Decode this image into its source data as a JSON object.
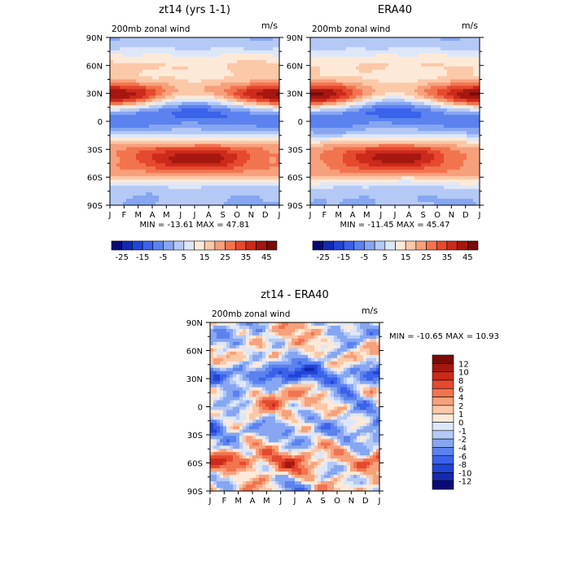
{
  "chart_data": [
    {
      "type": "heatmap",
      "panel": "left",
      "title": "zt14 (yrs 1-1)",
      "subtitle": "200mb zonal wind",
      "units": "m/s",
      "x_tick_labels": [
        "J",
        "F",
        "M",
        "A",
        "M",
        "J",
        "J",
        "A",
        "S",
        "O",
        "N",
        "D",
        "J"
      ],
      "y_tick_labels": [
        "90N",
        "60N",
        "30N",
        "0",
        "30S",
        "60S",
        "90S"
      ],
      "y_tick_values": [
        90,
        60,
        30,
        0,
        -30,
        -60,
        -90
      ],
      "ylim": [
        -90,
        90
      ],
      "stats_text": "MIN = -13.61 MAX =  47.81",
      "min": -13.61,
      "max": 47.81,
      "colorbar": {
        "orientation": "horizontal",
        "levels": [
          -30,
          -25,
          -20,
          -15,
          -10,
          -5,
          0,
          5,
          10,
          15,
          20,
          25,
          30,
          35,
          40,
          45,
          50
        ],
        "tick_labels": [
          "-25",
          "-15",
          "-5",
          "5",
          "15",
          "25",
          "35",
          "45"
        ]
      }
    },
    {
      "type": "heatmap",
      "panel": "right",
      "title": "ERA40",
      "subtitle": "200mb zonal wind",
      "units": "m/s",
      "x_tick_labels": [
        "J",
        "F",
        "M",
        "A",
        "M",
        "J",
        "J",
        "A",
        "S",
        "O",
        "N",
        "D",
        "J"
      ],
      "y_tick_labels": [
        "90N",
        "60N",
        "30N",
        "0",
        "30S",
        "60S",
        "90S"
      ],
      "y_tick_values": [
        90,
        60,
        30,
        0,
        -30,
        -60,
        -90
      ],
      "ylim": [
        -90,
        90
      ],
      "stats_text": "MIN = -11.45 MAX =  45.47",
      "min": -11.45,
      "max": 45.47,
      "colorbar": {
        "orientation": "horizontal",
        "levels": [
          -30,
          -25,
          -20,
          -15,
          -10,
          -5,
          0,
          5,
          10,
          15,
          20,
          25,
          30,
          35,
          40,
          45,
          50
        ],
        "tick_labels": [
          "-25",
          "-15",
          "-5",
          "5",
          "15",
          "25",
          "35",
          "45"
        ]
      }
    },
    {
      "type": "heatmap",
      "panel": "difference",
      "title": "zt14 - ERA40",
      "subtitle": "200mb zonal wind",
      "units": "m/s",
      "x_tick_labels": [
        "J",
        "F",
        "M",
        "A",
        "M",
        "J",
        "J",
        "A",
        "S",
        "O",
        "N",
        "D",
        "J"
      ],
      "y_tick_labels": [
        "90N",
        "60N",
        "30N",
        "0",
        "30S",
        "60S",
        "90S"
      ],
      "y_tick_values": [
        90,
        60,
        30,
        0,
        -30,
        -60,
        -90
      ],
      "ylim": [
        -90,
        90
      ],
      "stats_text": "MIN = -10.65 MAX =  10.93",
      "min": -10.65,
      "max": 10.93,
      "colorbar": {
        "orientation": "vertical",
        "levels": [
          -14,
          -12,
          -10,
          -8,
          -6,
          -4,
          -2,
          -1,
          0,
          1,
          2,
          4,
          6,
          8,
          10,
          12,
          14
        ],
        "tick_labels": [
          "12",
          "10",
          "8",
          "6",
          "4",
          "2",
          "1",
          "0",
          "-1",
          "-2",
          "-4",
          "-6",
          "-8",
          "-10",
          "-12"
        ]
      }
    }
  ],
  "palettes": {
    "sequential": [
      "#0a0a74",
      "#1428b0",
      "#2244d6",
      "#3b62ea",
      "#5b82ee",
      "#86a6f2",
      "#b5c9f6",
      "#dde7fa",
      "#fde9d8",
      "#fbc8a8",
      "#f7a07c",
      "#f2744f",
      "#e5492e",
      "#cc2a1a",
      "#a51710",
      "#780c08"
    ],
    "diverging": [
      "#0a0a74",
      "#1428b0",
      "#2244d6",
      "#3b62ea",
      "#5b82ee",
      "#86a6f2",
      "#b5c9f6",
      "#dde7fa",
      "#fde9d8",
      "#fbc8a8",
      "#f7a07c",
      "#f2744f",
      "#e5492e",
      "#cc2a1a",
      "#a51710",
      "#780c08"
    ]
  }
}
